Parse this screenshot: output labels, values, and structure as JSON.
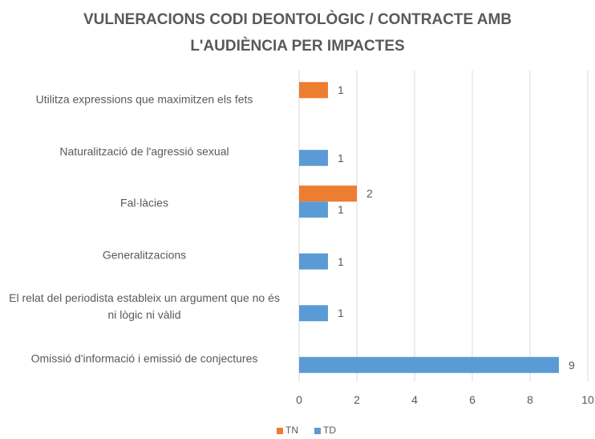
{
  "chart_data": {
    "type": "hbar",
    "title": "VULNERACIONS CODI DEONTOLÒGIC / CONTRACTE AMB L'AUDIÈNCIA PER IMPACTES",
    "categories": [
      "Utilitza expressions que maximitzen els fets",
      "Naturalització de l'agressió sexual",
      "Fal·làcies",
      "Generalitzacions",
      "El relat del periodista estableix un argument que no és ni lògic ni vàlid",
      "Omissió d'informació i emissió de conjectures"
    ],
    "series": [
      {
        "name": "TN",
        "color": "#ed7d31",
        "values": [
          1,
          null,
          2,
          null,
          null,
          null
        ]
      },
      {
        "name": "TD",
        "color": "#5b9bd5",
        "values": [
          null,
          1,
          1,
          1,
          1,
          9
        ]
      }
    ],
    "xlim": [
      0,
      10
    ],
    "xticks": [
      0,
      2,
      4,
      6,
      8,
      10
    ],
    "grid": true,
    "legend": "bottom"
  }
}
